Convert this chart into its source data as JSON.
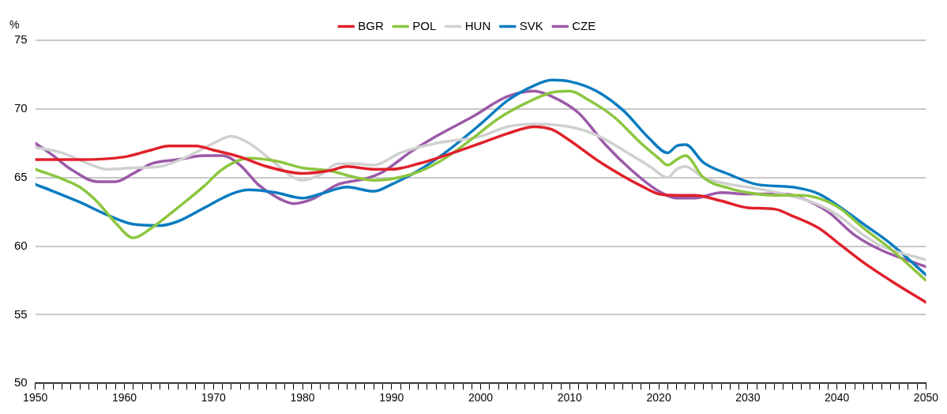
{
  "chart_data": {
    "type": "line",
    "ylabel": "%",
    "xlim": [
      1950,
      2050
    ],
    "ylim": [
      50,
      75
    ],
    "yticks": [
      50,
      55,
      60,
      65,
      70,
      75
    ],
    "xticks": [
      1950,
      {
        "value": 1951,
        "label": null
      },
      {
        "value": 1952,
        "label": null
      },
      {
        "value": 1953,
        "label": null
      },
      {
        "value": 1954,
        "label": null
      },
      {
        "value": 1955,
        "label": null
      },
      {
        "value": 1956,
        "label": null
      },
      {
        "value": 1957,
        "label": null
      },
      {
        "value": 1958,
        "label": null
      },
      {
        "value": 1959,
        "label": null
      },
      1960,
      {
        "value": 1961,
        "label": null
      },
      {
        "value": 1962,
        "label": null
      },
      {
        "value": 1963,
        "label": null
      },
      {
        "value": 1964,
        "label": null
      },
      {
        "value": 1965,
        "label": null
      },
      {
        "value": 1966,
        "label": null
      },
      {
        "value": 1967,
        "label": null
      },
      {
        "value": 1968,
        "label": null
      },
      {
        "value": 1969,
        "label": null
      },
      1970,
      {
        "value": 1971,
        "label": null
      },
      {
        "value": 1972,
        "label": null
      },
      {
        "value": 1973,
        "label": null
      },
      {
        "value": 1974,
        "label": null
      },
      {
        "value": 1975,
        "label": null
      },
      {
        "value": 1976,
        "label": null
      },
      {
        "value": 1977,
        "label": null
      },
      {
        "value": 1978,
        "label": null
      },
      {
        "value": 1979,
        "label": null
      },
      1980,
      {
        "value": 1981,
        "label": null
      },
      {
        "value": 1982,
        "label": null
      },
      {
        "value": 1983,
        "label": null
      },
      {
        "value": 1984,
        "label": null
      },
      {
        "value": 1985,
        "label": null
      },
      {
        "value": 1986,
        "label": null
      },
      {
        "value": 1987,
        "label": null
      },
      {
        "value": 1988,
        "label": null
      },
      {
        "value": 1989,
        "label": null
      },
      1990,
      {
        "value": 1991,
        "label": null
      },
      {
        "value": 1992,
        "label": null
      },
      {
        "value": 1993,
        "label": null
      },
      {
        "value": 1994,
        "label": null
      },
      {
        "value": 1995,
        "label": null
      },
      {
        "value": 1996,
        "label": null
      },
      {
        "value": 1997,
        "label": null
      },
      {
        "value": 1998,
        "label": null
      },
      {
        "value": 1999,
        "label": null
      },
      2000,
      {
        "value": 2001,
        "label": null
      },
      {
        "value": 2002,
        "label": null
      },
      {
        "value": 2003,
        "label": null
      },
      {
        "value": 2004,
        "label": null
      },
      {
        "value": 2005,
        "label": null
      },
      {
        "value": 2006,
        "label": null
      },
      {
        "value": 2007,
        "label": null
      },
      {
        "value": 2008,
        "label": null
      },
      {
        "value": 2009,
        "label": null
      },
      2010,
      {
        "value": 2011,
        "label": null
      },
      {
        "value": 2012,
        "label": null
      },
      {
        "value": 2013,
        "label": null
      },
      {
        "value": 2014,
        "label": null
      },
      {
        "value": 2015,
        "label": null
      },
      {
        "value": 2016,
        "label": null
      },
      {
        "value": 2017,
        "label": null
      },
      {
        "value": 2018,
        "label": null
      },
      {
        "value": 2019,
        "label": null
      },
      2020,
      {
        "value": 2021,
        "label": null
      },
      {
        "value": 2022,
        "label": null
      },
      {
        "value": 2023,
        "label": null
      },
      {
        "value": 2024,
        "label": null
      },
      {
        "value": 2025,
        "label": null
      },
      {
        "value": 2026,
        "label": null
      },
      {
        "value": 2027,
        "label": null
      },
      {
        "value": 2028,
        "label": null
      },
      {
        "value": 2029,
        "label": null
      },
      2030,
      {
        "value": 2031,
        "label": null
      },
      {
        "value": 2032,
        "label": null
      },
      {
        "value": 2033,
        "label": null
      },
      {
        "value": 2034,
        "label": null
      },
      {
        "value": 2035,
        "label": null
      },
      {
        "value": 2036,
        "label": null
      },
      {
        "value": 2037,
        "label": null
      },
      {
        "value": 2038,
        "label": null
      },
      {
        "value": 2039,
        "label": null
      },
      2040,
      {
        "value": 2041,
        "label": null
      },
      {
        "value": 2042,
        "label": null
      },
      {
        "value": 2043,
        "label": null
      },
      {
        "value": 2044,
        "label": null
      },
      {
        "value": 2045,
        "label": null
      },
      {
        "value": 2046,
        "label": null
      },
      {
        "value": 2047,
        "label": null
      },
      {
        "value": 2048,
        "label": null
      },
      {
        "value": 2049,
        "label": null
      },
      2050
    ],
    "grid": "y",
    "legend": "top",
    "marker": "none",
    "line_style": "solid",
    "series": [
      {
        "name": "BGR",
        "color": "#e0202a",
        "x": [
          1950,
          1955,
          1960,
          1963,
          1965,
          1968,
          1970,
          1973,
          1976,
          1980,
          1983,
          1985,
          1988,
          1990,
          1993,
          1996,
          2000,
          2003,
          2006,
          2008,
          2010,
          2013,
          2016,
          2018,
          2020,
          2022,
          2024,
          2027,
          2030,
          2033,
          2035,
          2038,
          2040,
          2043,
          2046,
          2050
        ],
        "values": [
          66.3,
          66.3,
          66.5,
          67.0,
          67.3,
          67.3,
          67.0,
          66.5,
          65.8,
          65.3,
          65.5,
          65.8,
          65.6,
          65.6,
          66.0,
          66.6,
          67.5,
          68.2,
          68.7,
          68.5,
          67.7,
          66.3,
          65.1,
          64.4,
          63.8,
          63.7,
          63.7,
          63.3,
          62.8,
          62.7,
          62.2,
          61.3,
          60.3,
          58.8,
          57.5,
          55.9
        ]
      },
      {
        "name": "POL",
        "color": "#8cc63f",
        "x": [
          1950,
          1953,
          1955,
          1957,
          1959,
          1961,
          1963,
          1966,
          1969,
          1971,
          1974,
          1977,
          1980,
          1983,
          1986,
          1988,
          1990,
          1993,
          1996,
          1999,
          2002,
          2005,
          2008,
          2010,
          2012,
          2015,
          2018,
          2020,
          2021,
          2022,
          2023,
          2025,
          2028,
          2030,
          2033,
          2036,
          2040,
          2043,
          2046,
          2050
        ],
        "values": [
          65.6,
          64.9,
          64.3,
          63.2,
          61.7,
          60.6,
          61.3,
          62.8,
          64.4,
          65.6,
          66.4,
          66.2,
          65.7,
          65.5,
          65.0,
          64.8,
          64.9,
          65.4,
          66.4,
          67.8,
          69.3,
          70.4,
          71.2,
          71.3,
          70.7,
          69.4,
          67.5,
          66.4,
          65.9,
          66.3,
          66.6,
          65.0,
          64.2,
          63.9,
          63.7,
          63.7,
          62.9,
          61.3,
          59.8,
          57.5
        ]
      },
      {
        "name": "HUN",
        "color": "#d0d0d0",
        "x": [
          1950,
          1953,
          1956,
          1958,
          1961,
          1964,
          1967,
          1970,
          1972,
          1974,
          1977,
          1979,
          1980,
          1982,
          1984,
          1986,
          1988,
          1991,
          1995,
          2000,
          2003,
          2006,
          2010,
          2013,
          2016,
          2019,
          2021,
          2022,
          2023,
          2025,
          2028,
          2030,
          2034,
          2038,
          2040,
          2043,
          2045,
          2050
        ],
        "values": [
          67.2,
          66.8,
          66.0,
          65.6,
          65.7,
          65.8,
          66.5,
          67.5,
          68.0,
          67.5,
          66.0,
          65.0,
          64.8,
          65.2,
          66.0,
          66.0,
          65.9,
          66.8,
          67.5,
          68.0,
          68.7,
          68.9,
          68.7,
          68.1,
          67.0,
          65.8,
          65.0,
          65.6,
          65.8,
          65.0,
          64.5,
          64.3,
          63.8,
          63.0,
          62.3,
          60.8,
          60.0,
          59.0
        ]
      },
      {
        "name": "SVK",
        "color": "#0a7cc1",
        "x": [
          1950,
          1952,
          1955,
          1958,
          1961,
          1964,
          1966,
          1969,
          1972,
          1974,
          1977,
          1980,
          1982,
          1985,
          1988,
          1990,
          1993,
          1996,
          2000,
          2003,
          2006,
          2008,
          2010,
          2013,
          2016,
          2019,
          2021,
          2022,
          2023,
          2025,
          2028,
          2031,
          2035,
          2038,
          2040,
          2043,
          2046,
          2050
        ],
        "values": [
          64.5,
          64.0,
          63.2,
          62.3,
          61.6,
          61.5,
          61.8,
          62.8,
          63.8,
          64.1,
          63.9,
          63.5,
          63.8,
          64.3,
          64.0,
          64.5,
          65.5,
          66.8,
          68.9,
          70.6,
          71.7,
          72.1,
          72.0,
          71.3,
          69.9,
          67.8,
          66.8,
          67.3,
          67.4,
          66.1,
          65.2,
          64.5,
          64.3,
          63.8,
          63.0,
          61.6,
          60.2,
          57.9
        ]
      },
      {
        "name": "CZE",
        "color": "#9b59a8",
        "x": [
          1950,
          1952,
          1954,
          1957,
          1959,
          1961,
          1963,
          1966,
          1969,
          1971,
          1973,
          1975,
          1977,
          1979,
          1981,
          1984,
          1987,
          1989,
          1992,
          1995,
          1999,
          2003,
          2006,
          2008,
          2011,
          2014,
          2017,
          2020,
          2022,
          2024,
          2027,
          2030,
          2034,
          2036,
          2039,
          2042,
          2045,
          2050
        ],
        "values": [
          67.5,
          66.6,
          65.6,
          64.7,
          64.7,
          65.3,
          66.0,
          66.3,
          66.6,
          66.6,
          65.9,
          64.5,
          63.6,
          63.1,
          63.4,
          64.5,
          64.9,
          65.4,
          66.8,
          68.0,
          69.4,
          70.9,
          71.3,
          70.9,
          69.7,
          67.4,
          65.5,
          64.0,
          63.5,
          63.5,
          63.9,
          63.8,
          63.8,
          63.5,
          62.5,
          60.8,
          59.7,
          58.5
        ]
      }
    ]
  }
}
